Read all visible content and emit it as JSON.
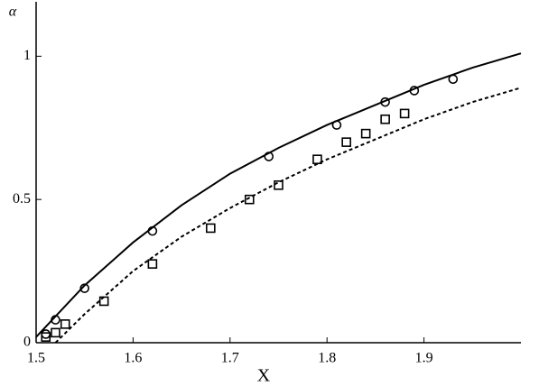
{
  "chart_data": {
    "type": "line",
    "y_label": "α",
    "x_label": "X",
    "xlim": [
      1.5,
      2.0
    ],
    "ylim": [
      0,
      1.19
    ],
    "xticks": [
      1.5,
      1.6,
      1.7,
      1.8,
      1.9
    ],
    "yticks": [
      0,
      0.5,
      1
    ],
    "series": [
      {
        "style": "solid",
        "color": "#000000",
        "x": [
          1.5,
          1.55,
          1.6,
          1.65,
          1.7,
          1.75,
          1.8,
          1.85,
          1.9,
          1.95,
          2.0
        ],
        "values": [
          0.02,
          0.2,
          0.35,
          0.48,
          0.59,
          0.68,
          0.76,
          0.83,
          0.9,
          0.96,
          1.01
        ]
      },
      {
        "style": "dotted",
        "color": "#000000",
        "x": [
          1.52,
          1.55,
          1.6,
          1.65,
          1.7,
          1.75,
          1.8,
          1.85,
          1.9,
          1.95,
          2.0
        ],
        "values": [
          0,
          0.1,
          0.25,
          0.37,
          0.47,
          0.56,
          0.64,
          0.71,
          0.78,
          0.84,
          0.89
        ]
      },
      {
        "style": "none",
        "marker": "circle",
        "color": "#000000",
        "x": [
          1.51,
          1.52,
          1.55,
          1.62,
          1.74,
          1.81,
          1.86,
          1.89,
          1.93
        ],
        "values": [
          0.03,
          0.08,
          0.19,
          0.39,
          0.65,
          0.76,
          0.84,
          0.88,
          0.92
        ]
      },
      {
        "style": "none",
        "marker": "square",
        "color": "#000000",
        "x": [
          1.51,
          1.52,
          1.53,
          1.57,
          1.62,
          1.68,
          1.72,
          1.75,
          1.79,
          1.82,
          1.84,
          1.86,
          1.88
        ],
        "values": [
          0.02,
          0.035,
          0.065,
          0.145,
          0.275,
          0.4,
          0.5,
          0.55,
          0.64,
          0.7,
          0.73,
          0.78,
          0.8
        ]
      }
    ]
  }
}
